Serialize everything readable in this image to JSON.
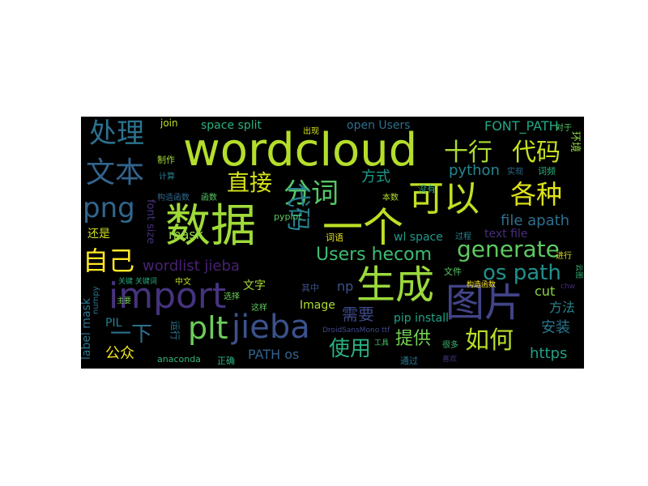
{
  "words": [
    {
      "text": "wordcloud",
      "color": "#b5de2b"
    },
    {
      "text": "数据",
      "color": "#a0da39"
    },
    {
      "text": "一个",
      "color": "#bddf26"
    },
    {
      "text": "可以",
      "color": "#c2df23"
    },
    {
      "text": "生成",
      "color": "#9bd93c"
    },
    {
      "text": "图片",
      "color": "#414487"
    },
    {
      "text": "import",
      "color": "#46337e"
    },
    {
      "text": "jieba",
      "color": "#3b528b"
    },
    {
      "text": "plt",
      "color": "#6ccd5a"
    },
    {
      "text": "文本",
      "color": "#32648e"
    },
    {
      "text": "处理",
      "color": "#2c728e"
    },
    {
      "text": "png",
      "color": "#31668e"
    },
    {
      "text": "十行",
      "color": "#aadc32"
    },
    {
      "text": "代码",
      "color": "#c8e020"
    },
    {
      "text": "各种",
      "color": "#dde318"
    },
    {
      "text": "分词",
      "color": "#56c667"
    },
    {
      "text": "直接",
      "color": "#d5e21a"
    },
    {
      "text": "自己",
      "color": "#fde725"
    },
    {
      "text": "generate",
      "color": "#5ec962"
    },
    {
      "text": "os path",
      "color": "#21918c"
    },
    {
      "text": "Users hecom",
      "color": "#3dbc74"
    },
    {
      "text": "代码",
      "color": "#27808e"
    },
    {
      "text": "一下",
      "color": "#2e6f8e"
    },
    {
      "text": "如何",
      "color": "#b8de29"
    },
    {
      "text": "使用",
      "color": "#2ab07f"
    },
    {
      "text": "提供",
      "color": "#75d054"
    },
    {
      "text": "需要",
      "color": "#3e4a89"
    },
    {
      "text": "公众",
      "color": "#f1e51d"
    },
    {
      "text": "安装",
      "color": "#2a778e"
    },
    {
      "text": "方法",
      "color": "#26828e"
    },
    {
      "text": "https",
      "color": "#1fa088"
    },
    {
      "text": "PATH os",
      "color": "#33628d"
    },
    {
      "text": "wordlist jieba",
      "color": "#482173"
    },
    {
      "text": "mask",
      "color": "#90d743"
    },
    {
      "text": "python",
      "color": "#24868e"
    },
    {
      "text": "方式",
      "color": "#1e9b8a"
    },
    {
      "text": "file apath",
      "color": "#2e6e8e"
    },
    {
      "text": "FONT_PATH",
      "color": "#22a785"
    },
    {
      "text": "space split",
      "color": "#2ab07f"
    },
    {
      "text": "open Users",
      "color": "#2d708e"
    },
    {
      "text": "wl space",
      "color": "#1f9a8a"
    },
    {
      "text": "pip install",
      "color": "#20a386"
    },
    {
      "text": "text file",
      "color": "#472d7b"
    },
    {
      "text": "cut",
      "color": "#8ed645"
    },
    {
      "text": "Image",
      "color": "#addc30"
    },
    {
      "text": "np",
      "color": "#3b528b"
    },
    {
      "text": "文字",
      "color": "#a8db34"
    },
    {
      "text": "还是",
      "color": "#d0e11c"
    },
    {
      "text": "PIL",
      "color": "#27808e"
    },
    {
      "text": "词频",
      "color": "#2db27d"
    },
    {
      "text": "pyplot",
      "color": "#5ec962"
    },
    {
      "text": "join",
      "color": "#c2df23"
    },
    {
      "text": "font size",
      "color": "#46307e"
    },
    {
      "text": "label mask",
      "color": "#2c728e"
    },
    {
      "text": "anaconda",
      "color": "#35b779"
    },
    {
      "text": "环境",
      "color": "#8bd646"
    },
    {
      "text": "词语",
      "color": "#e5e419"
    },
    {
      "text": "运行",
      "color": "#2a788e"
    },
    {
      "text": "正确",
      "color": "#2db27d"
    },
    {
      "text": "选择",
      "color": "#6ece58"
    },
    {
      "text": "这样",
      "color": "#63cb5f"
    },
    {
      "text": "其中",
      "color": "#3c4f8a"
    },
    {
      "text": "没有",
      "color": "#27ad81"
    },
    {
      "text": "文件",
      "color": "#5cc863"
    },
    {
      "text": "通过",
      "color": "#2a788e"
    },
    {
      "text": "制作",
      "color": "#a5db36"
    },
    {
      "text": "构造函数",
      "color": "#31688e"
    },
    {
      "text": "出现",
      "color": "#d2e21b"
    },
    {
      "text": "本数",
      "color": "#b2dd2d"
    },
    {
      "text": "实现",
      "color": "#2e6d8e"
    },
    {
      "text": "过程",
      "color": "#25848e"
    },
    {
      "text": "进行",
      "color": "#d8e219"
    },
    {
      "text": "对于",
      "color": "#52c569"
    },
    {
      "text": "中文",
      "color": "#c0df25"
    },
    {
      "text": "关键 关键词",
      "color": "#27ad81"
    },
    {
      "text": "numpy",
      "color": "#2c738e"
    },
    {
      "text": "DroidSansMono ttf",
      "color": "#3f4889"
    },
    {
      "text": "计算",
      "color": "#297b8e"
    },
    {
      "text": "函数",
      "color": "#5ac864"
    },
    {
      "text": "工具",
      "color": "#4ac16d"
    },
    {
      "text": "很多",
      "color": "#3aba76"
    },
    {
      "text": "喜欢",
      "color": "#46327e"
    },
    {
      "text": "构造函数",
      "color": "#fde725"
    },
    {
      "text": "主要",
      "color": "#7ad151"
    },
    {
      "text": "chw",
      "color": "#472c7a"
    },
    {
      "text": "云图",
      "color": "#35b779"
    }
  ]
}
